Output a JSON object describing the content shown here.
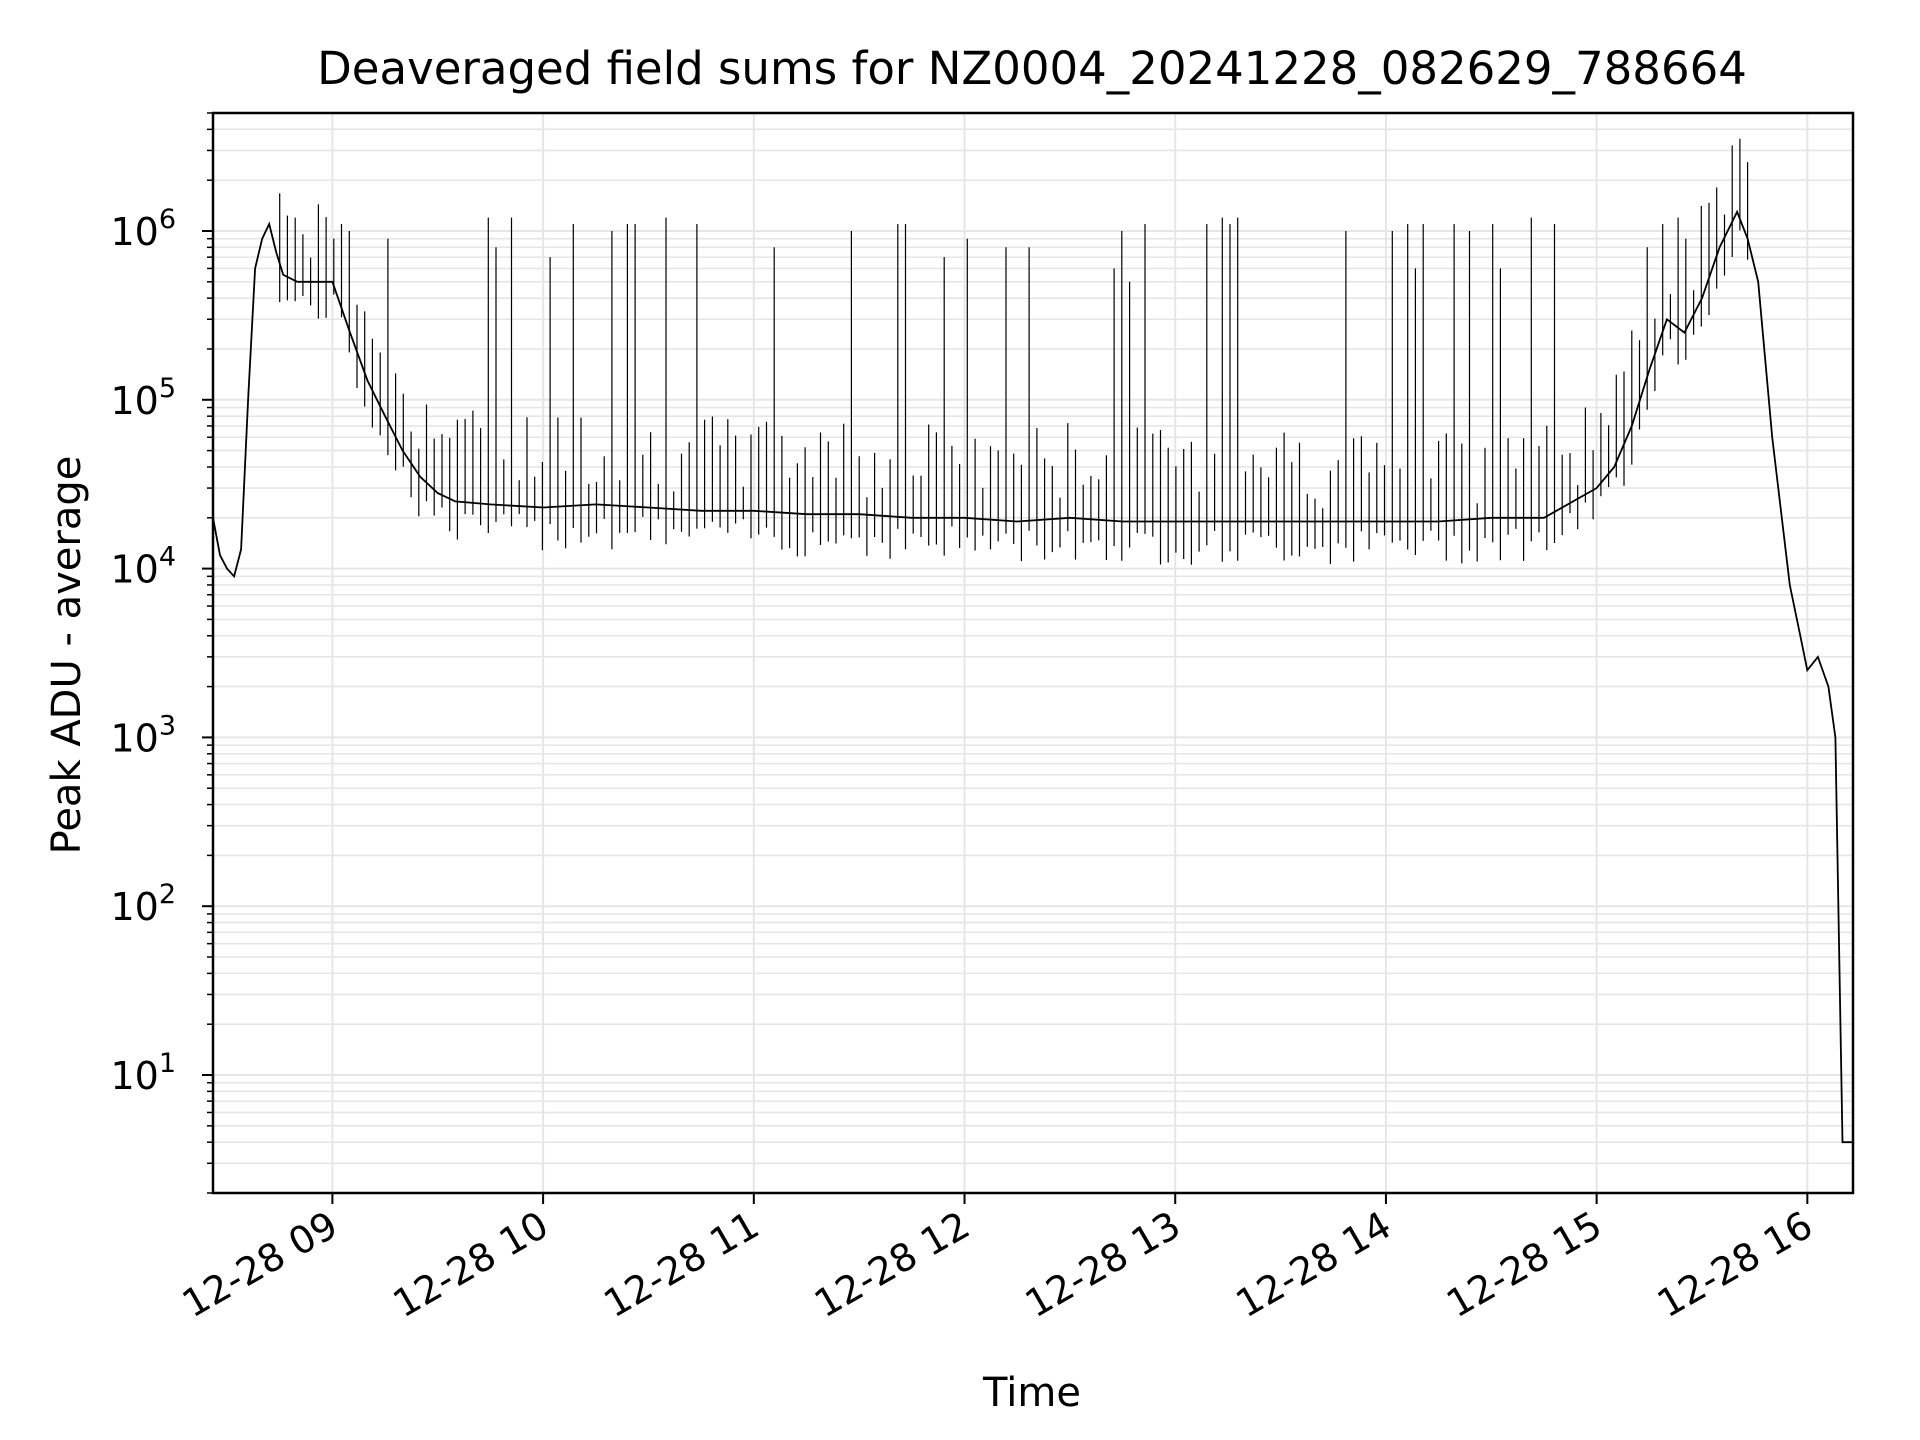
{
  "chart_data": {
    "type": "line",
    "title": "Deaveraged field sums for NZ0004_20241228_082629_788664",
    "xlabel": "Time",
    "ylabel": "Peak ADU - average",
    "yscale": "log",
    "grid": true,
    "grid_which": "both",
    "line_color": "#000000",
    "grid_color": "#e6e6e6",
    "xlim": [
      "12-28 08:26",
      "12-28 16:13"
    ],
    "ylim": [
      2,
      5000000
    ],
    "x_ticks": [
      "12-28 09",
      "12-28 10",
      "12-28 11",
      "12-28 12",
      "12-28 13",
      "12-28 14",
      "12-28 15",
      "12-28 16"
    ],
    "x_tick_values": [
      "12-28 09:00",
      "12-28 10:00",
      "12-28 11:00",
      "12-28 12:00",
      "12-28 13:00",
      "12-28 14:00",
      "12-28 15:00",
      "12-28 16:00"
    ],
    "y_ticks": [
      {
        "value": 10,
        "base": "10",
        "exp": "1"
      },
      {
        "value": 100,
        "base": "10",
        "exp": "2"
      },
      {
        "value": 1000,
        "base": "10",
        "exp": "3"
      },
      {
        "value": 10000,
        "base": "10",
        "exp": "4"
      },
      {
        "value": 100000,
        "base": "10",
        "exp": "5"
      },
      {
        "value": 1000000,
        "base": "10",
        "exp": "6"
      }
    ],
    "series": [
      {
        "x": [
          "12-28 08:26",
          "12-28 08:28",
          "12-28 08:30",
          "12-28 08:32",
          "12-28 08:34",
          "12-28 08:36",
          "12-28 08:38",
          "12-28 08:40",
          "12-28 08:42",
          "12-28 08:44",
          "12-28 08:46",
          "12-28 08:50",
          "12-28 08:55",
          "12-28 09:00",
          "12-28 09:05",
          "12-28 09:10",
          "12-28 09:15",
          "12-28 09:20",
          "12-28 09:25",
          "12-28 09:30",
          "12-28 09:35",
          "12-28 09:45",
          "12-28 10:00",
          "12-28 10:15",
          "12-28 10:30",
          "12-28 10:45",
          "12-28 11:00",
          "12-28 11:15",
          "12-28 11:30",
          "12-28 11:45",
          "12-28 12:00",
          "12-28 12:15",
          "12-28 12:30",
          "12-28 12:45",
          "12-28 13:00",
          "12-28 13:15",
          "12-28 13:30",
          "12-28 13:45",
          "12-28 14:00",
          "12-28 14:15",
          "12-28 14:30",
          "12-28 14:45",
          "12-28 15:00",
          "12-28 15:05",
          "12-28 15:10",
          "12-28 15:15",
          "12-28 15:20",
          "12-28 15:25",
          "12-28 15:30",
          "12-28 15:35",
          "12-28 15:40",
          "12-28 15:43",
          "12-28 15:46",
          "12-28 15:50",
          "12-28 15:55",
          "12-28 15:58",
          "12-28 16:00",
          "12-28 16:03",
          "12-28 16:06",
          "12-28 16:08",
          "12-28 16:10",
          "12-28 16:13"
        ],
        "y": [
          20000,
          12000,
          10000,
          9000,
          13000,
          100000,
          600000,
          900000,
          1100000,
          750000,
          550000,
          500000,
          500000,
          500000,
          250000,
          130000,
          80000,
          50000,
          35000,
          28000,
          25000,
          24000,
          23000,
          24000,
          23000,
          22000,
          22000,
          21000,
          21000,
          20000,
          20000,
          19000,
          20000,
          19000,
          19000,
          19000,
          19000,
          19000,
          19000,
          19000,
          20000,
          20000,
          30000,
          40000,
          70000,
          150000,
          300000,
          250000,
          400000,
          800000,
          1300000,
          900000,
          500000,
          60000,
          8000,
          4000,
          2500,
          3000,
          2000,
          1000,
          4,
          4
        ]
      }
    ],
    "spikes": {
      "x_range": [
        "12-28 08:45",
        "12-28 15:45"
      ],
      "peak_values": [
        1100000,
        1200000,
        900000,
        1100000,
        1000000,
        700000,
        1100000,
        500000,
        1200000,
        800000,
        1000000,
        1100000,
        600000,
        1100000,
        900000,
        1000000,
        1100000,
        700000,
        1100000,
        1000000,
        800000,
        1200000,
        1100000,
        900000,
        1100000
      ]
    },
    "end_values": {
      "minimum": 4
    }
  }
}
